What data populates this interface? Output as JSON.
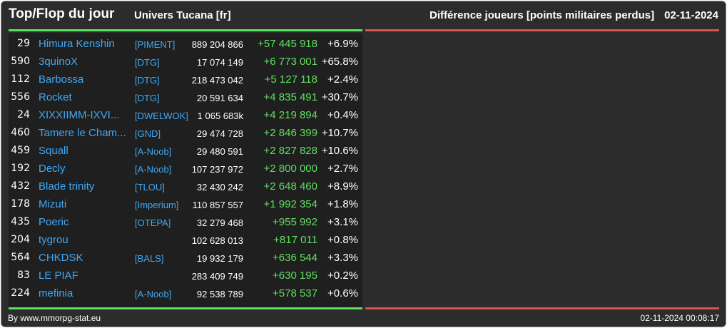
{
  "header": {
    "title": "Top/Flop du jour",
    "universe": "Univers Tucana [fr]",
    "metric": "Différence joueurs [points militaires perdus]",
    "date": "02-11-2024"
  },
  "colors": {
    "positive": "#5ee05e",
    "negative": "#d9534f",
    "link": "#3fa9f5",
    "background": "#2c2c2c"
  },
  "rows": [
    {
      "rank": "29",
      "name": "Himura Kenshin",
      "alliance": "[PIMENT]",
      "points": "889 204 866",
      "diff": "+57 445 918",
      "pct": "+6.9%"
    },
    {
      "rank": "590",
      "name": "3quinoX",
      "alliance": "[DTG]",
      "points": "17 074 149",
      "diff": "+6 773 001",
      "pct": "+65.8%"
    },
    {
      "rank": "112",
      "name": "Barbossa",
      "alliance": "[DTG]",
      "points": "218 473 042",
      "diff": "+5 127 118",
      "pct": "+2.4%"
    },
    {
      "rank": "556",
      "name": "Rocket",
      "alliance": "[DTG]",
      "points": "20 591 634",
      "diff": "+4 835 491",
      "pct": "+30.7%"
    },
    {
      "rank": "24",
      "name": "XIXXIIMM-IXVI...",
      "alliance": "[DWELWOK]",
      "points": "1 065 683k",
      "diff": "+4 219 894",
      "pct": "+0.4%"
    },
    {
      "rank": "460",
      "name": "Tamere le Cham...",
      "alliance": "[GND]",
      "points": "29 474 728",
      "diff": "+2 846 399",
      "pct": "+10.7%"
    },
    {
      "rank": "459",
      "name": "Squall",
      "alliance": "[A-Noob]",
      "points": "29 480 591",
      "diff": "+2 827 828",
      "pct": "+10.6%"
    },
    {
      "rank": "192",
      "name": "Decly",
      "alliance": "[A-Noob]",
      "points": "107 237 972",
      "diff": "+2 800 000",
      "pct": "+2.7%"
    },
    {
      "rank": "432",
      "name": "Blade trinity",
      "alliance": "[TLOU]",
      "points": "32 430 242",
      "diff": "+2 648 460",
      "pct": "+8.9%"
    },
    {
      "rank": "178",
      "name": "Mizuti",
      "alliance": "[Imperium]",
      "points": "110 857 557",
      "diff": "+1 992 354",
      "pct": "+1.8%"
    },
    {
      "rank": "435",
      "name": "Poeric",
      "alliance": "[OTEPA]",
      "points": "32 279 468",
      "diff": "+955 992",
      "pct": "+3.1%"
    },
    {
      "rank": "204",
      "name": "tygrou",
      "alliance": "",
      "points": "102 628 013",
      "diff": "+817 011",
      "pct": "+0.8%"
    },
    {
      "rank": "564",
      "name": "CHKDSK",
      "alliance": "[BALS]",
      "points": "19 932 179",
      "diff": "+636 544",
      "pct": "+3.3%"
    },
    {
      "rank": "83",
      "name": "LE PIAF",
      "alliance": "",
      "points": "283 409 749",
      "diff": "+630 195",
      "pct": "+0.2%"
    },
    {
      "rank": "224",
      "name": "mefinia",
      "alliance": "[A-Noob]",
      "points": "92 538 789",
      "diff": "+578 537",
      "pct": "+0.6%"
    }
  ],
  "footer": {
    "credit": "By www.mmorpg-stat.eu",
    "timestamp": "02-11-2024 00:08:17"
  }
}
